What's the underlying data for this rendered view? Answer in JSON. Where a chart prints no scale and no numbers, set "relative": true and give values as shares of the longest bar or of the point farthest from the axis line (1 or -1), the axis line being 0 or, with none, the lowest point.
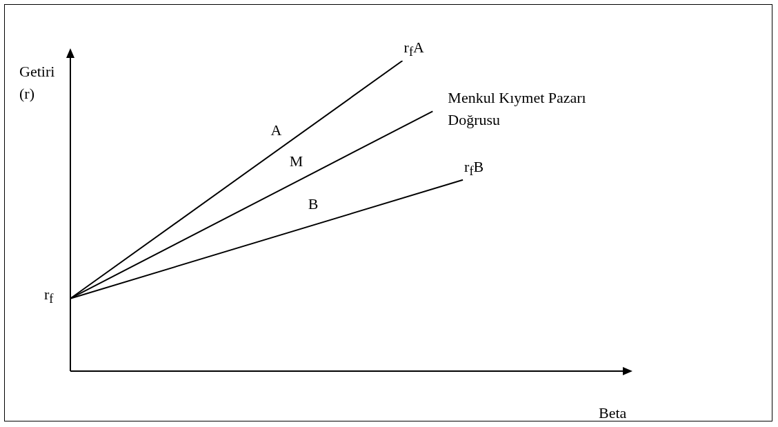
{
  "chart_data": {
    "type": "line",
    "relative": true,
    "xlabel": "Beta",
    "ylabel": "Getiri (r)",
    "legend": false,
    "categories": [
      null,
      null,
      null,
      null,
      null,
      null,
      null,
      null,
      null,
      null,
      null,
      null,
      null,
      null,
      null,
      null,
      null,
      null,
      null
    ],
    "series": [
      {
        "name": "r$_{f}$A",
        "color": "#000000",
        "values": [
          0.234,
          null,
          null,
          null,
          null,
          null,
          null,
          null,
          null,
          null,
          null,
          1,
          null,
          null,
          null,
          null,
          null,
          null,
          null
        ]
      },
      {
        "name": "Menkul Kıymet Pazarı Doğrusu",
        "color": "#000000",
        "values": [
          0.234,
          null,
          null,
          null,
          null,
          null,
          null,
          null,
          null,
          null,
          null,
          null,
          0.837,
          null,
          null,
          null,
          null,
          null,
          null
        ]
      },
      {
        "name": "r$_{f}$B",
        "color": "#000000",
        "values": [
          0.234,
          null,
          null,
          null,
          null,
          null,
          null,
          null,
          null,
          null,
          null,
          null,
          null,
          0.616,
          null,
          null,
          null,
          null,
          null
        ]
      }
    ],
    "annotations": [
      "A",
      "M",
      "B",
      "r$_{f}$"
    ]
  }
}
